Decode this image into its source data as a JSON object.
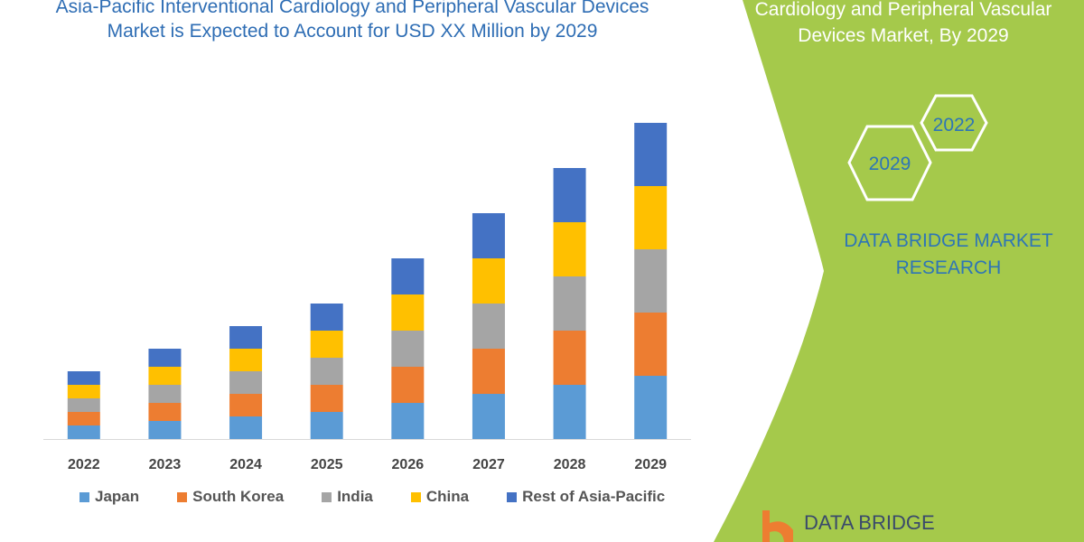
{
  "header": {
    "title": "Asia-Pacific Interventional Cardiology and Peripheral Vascular Devices Market is Expected to Account for USD XX Million by 2029",
    "right_title": "Cardiology and Peripheral Vascular Devices Market, By 2029",
    "hex_labels": [
      "2022",
      "2029"
    ],
    "brand_text": "DATA BRIDGE MARKET RESEARCH",
    "logo_text": "DATA BRIDGE"
  },
  "colors": {
    "panel": "#a5c94b",
    "title": "#2e6db4",
    "axis_text": "#444444"
  },
  "chart_data": {
    "type": "bar",
    "stacked": true,
    "title": "",
    "xlabel": "",
    "ylabel": "",
    "ylim": [
      0,
      360
    ],
    "grid": false,
    "legend_position": "bottom",
    "categories": [
      "2022",
      "2023",
      "2024",
      "2025",
      "2026",
      "2027",
      "2028",
      "2029"
    ],
    "series": [
      {
        "name": "Japan",
        "color": "#5b9bd5",
        "values": [
          15,
          20,
          25,
          30,
          40,
          50,
          60,
          70
        ]
      },
      {
        "name": "South Korea",
        "color": "#ed7d31",
        "values": [
          15,
          20,
          25,
          30,
          40,
          50,
          60,
          70
        ]
      },
      {
        "name": "India",
        "color": "#a5a5a5",
        "values": [
          15,
          20,
          25,
          30,
          40,
          50,
          60,
          70
        ]
      },
      {
        "name": "China",
        "color": "#ffc000",
        "values": [
          15,
          20,
          25,
          30,
          40,
          50,
          60,
          70
        ]
      },
      {
        "name": "Rest of Asia-Pacific",
        "color": "#4472c4",
        "values": [
          15,
          20,
          25,
          30,
          40,
          50,
          60,
          70
        ]
      }
    ]
  }
}
